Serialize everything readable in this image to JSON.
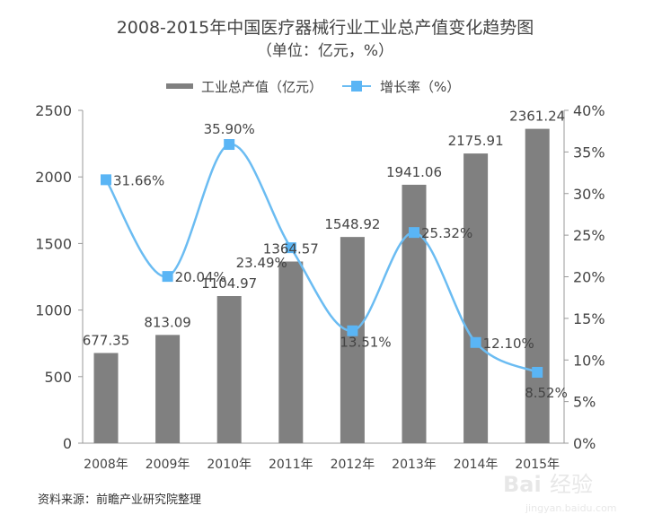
{
  "chart_data": {
    "type": "bar+line",
    "title": "2008-2015年中国医疗器械行业工业总产值变化趋势图",
    "subtitle": "（单位：亿元，%）",
    "categories": [
      "2008年",
      "2009年",
      "2010年",
      "2011年",
      "2012年",
      "2013年",
      "2014年",
      "2015年"
    ],
    "series": [
      {
        "name": "工业总产值（亿元）",
        "type": "bar",
        "axis": "left",
        "color": "#808080",
        "values": [
          677.35,
          813.09,
          1104.97,
          1364.57,
          1548.92,
          1941.06,
          2175.91,
          2361.24
        ]
      },
      {
        "name": "增长率（%）",
        "type": "line",
        "axis": "right",
        "color": "#6bbcf2",
        "values": [
          31.66,
          20.04,
          35.9,
          23.49,
          13.51,
          25.32,
          12.1,
          8.52
        ]
      }
    ],
    "left_axis": {
      "ylim": [
        0,
        2500
      ],
      "ticks": [
        "0",
        "500",
        "1000",
        "1500",
        "2000",
        "2500"
      ]
    },
    "right_axis": {
      "ylim": [
        0,
        40
      ],
      "ticks": [
        "0%",
        "5%",
        "10%",
        "15%",
        "20%",
        "25%",
        "30%",
        "35%",
        "40%"
      ]
    },
    "legend_position": "top",
    "grid": false,
    "source": "资料来源：前瞻产业研究院整理"
  },
  "watermark": "Baidu经验 jingyan.baidu.com"
}
